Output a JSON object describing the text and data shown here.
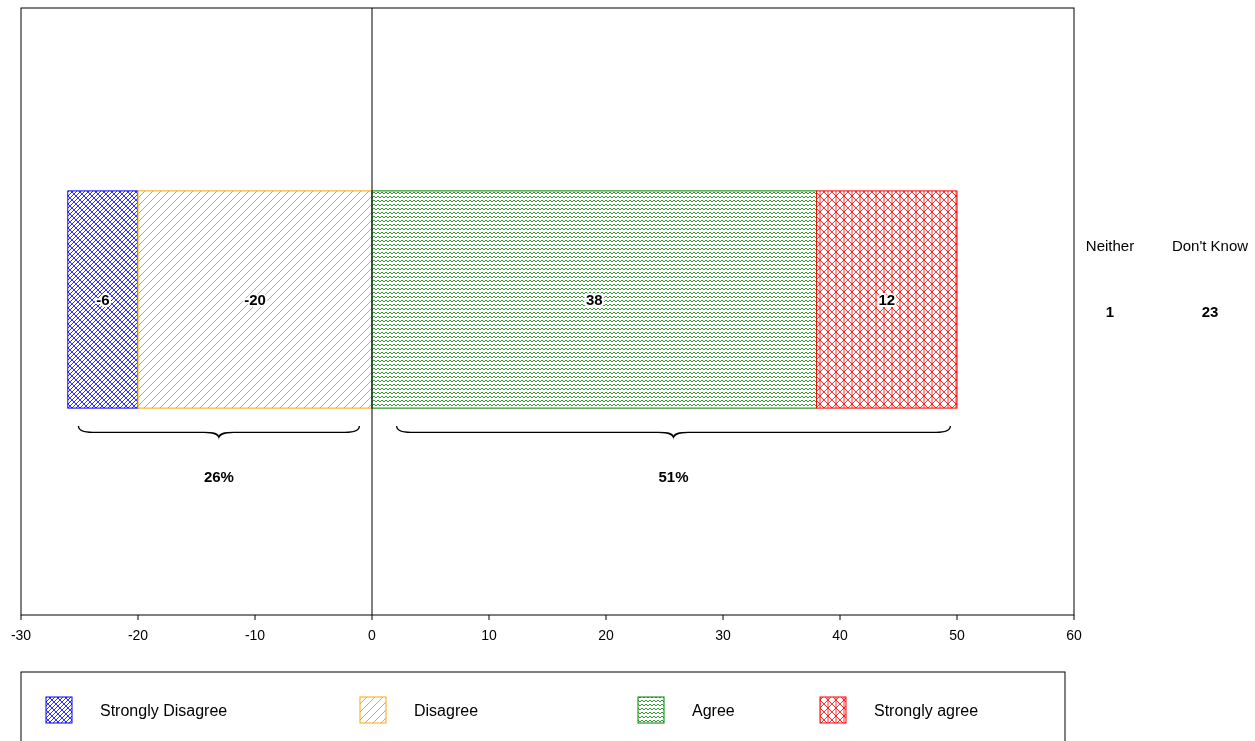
{
  "chart_data": {
    "type": "bar",
    "orientation": "horizontal",
    "categories": [
      null
    ],
    "series": [
      {
        "name": "Strongly Disagree",
        "color": "#0000ff",
        "values": [
          -6
        ],
        "base": [
          -20
        ]
      },
      {
        "name": "Disagree",
        "color": "#ffa500",
        "values": [
          -20
        ],
        "base": [
          0
        ]
      },
      {
        "name": "Agree",
        "color": "#008000",
        "values": [
          38
        ],
        "base": [
          0
        ]
      },
      {
        "name": "Strongly agree",
        "color": "#ff0000",
        "values": [
          12
        ],
        "base": [
          38
        ]
      }
    ],
    "xlim": [
      -30,
      60
    ],
    "xticks": [
      -30,
      -20,
      -10,
      0,
      10,
      20,
      30,
      40,
      50,
      60
    ],
    "data_labels": true,
    "grid": false,
    "legend": "bottom",
    "ref_lines": [
      {
        "axis": "x",
        "value": 0,
        "color": "#000000"
      }
    ],
    "annotations": [
      "26%",
      "51%",
      "Neither",
      "1",
      "Don't Know",
      "23"
    ]
  }
}
